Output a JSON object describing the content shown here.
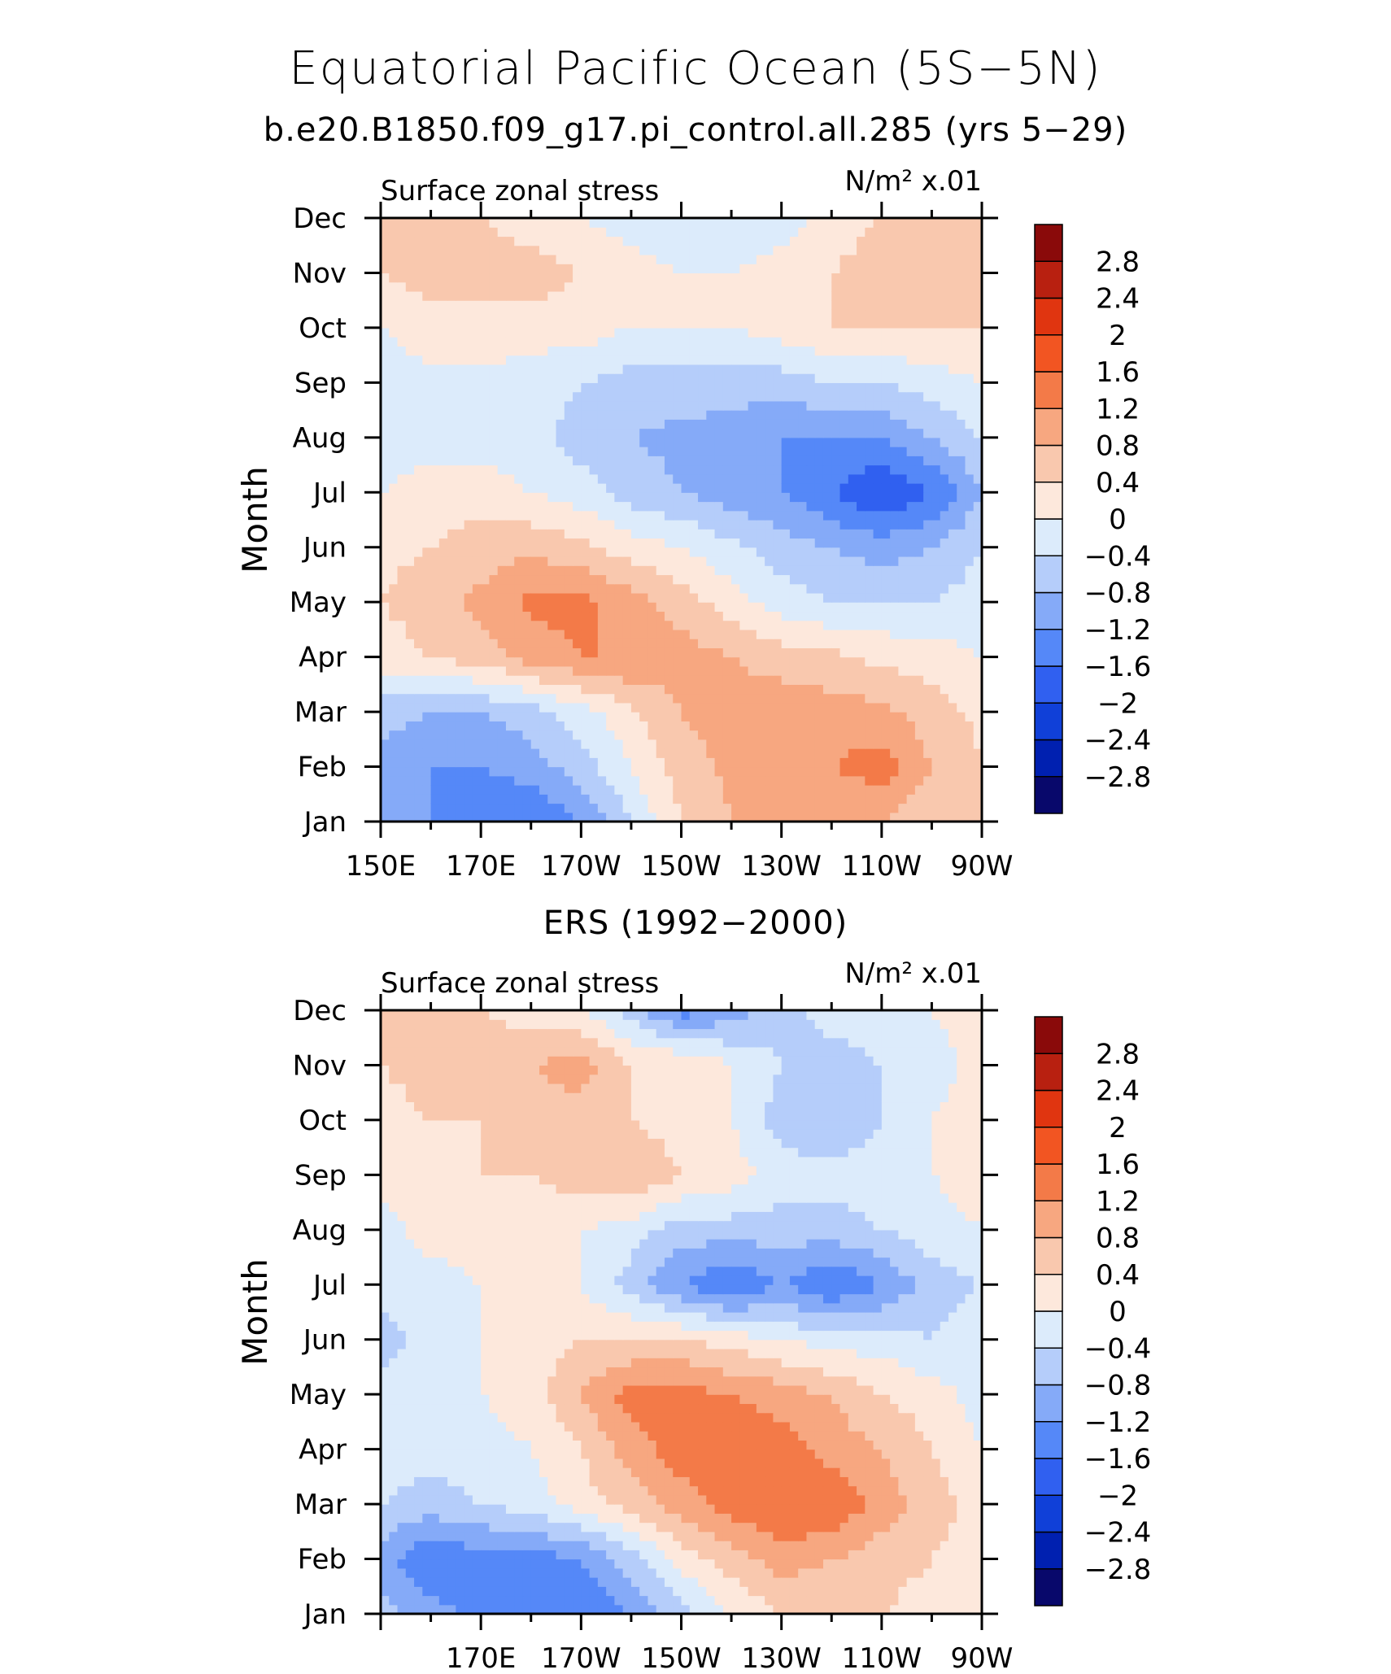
{
  "title": "Equatorial Pacific Ocean (5S−5N)",
  "subtitle": "b.e20.B1850.f09_g17.pi_control.all.285 (yrs 5−29)",
  "second_title": "ERS (1992−2000)",
  "colors": {
    "levels_fill": [
      "#08086b",
      "#0020b0",
      "#1040d8",
      "#3060f0",
      "#5588f8",
      "#85aaf8",
      "#b5cdfa",
      "#dcebfb",
      "#fde8dc",
      "#f9c8ae",
      "#f7a780",
      "#f37a48",
      "#f25522",
      "#e03510",
      "#b82010",
      "#8a0a0a"
    ]
  },
  "chart_data": [
    {
      "type": "heatmap",
      "panel_left_label": "Surface zonal stress",
      "panel_right_label": "N/m² x.01",
      "ylabel": "Month",
      "y_ticks": [
        "Jan",
        "Feb",
        "Mar",
        "Apr",
        "May",
        "Jun",
        "Jul",
        "Aug",
        "Sep",
        "Oct",
        "Nov",
        "Dec"
      ],
      "x_ticks": [
        "150E",
        "170E",
        "170W",
        "150W",
        "130W",
        "110W",
        "90W"
      ],
      "x_range_deg_east": [
        150,
        270
      ],
      "contour_levels": [
        -2.8,
        -2.4,
        -2,
        -1.6,
        -1.2,
        -0.8,
        -0.4,
        0,
        0.4,
        0.8,
        1.2,
        1.6,
        2,
        2.4,
        2.8
      ],
      "colorbar_labels": [
        "2.8",
        "2.4",
        "2",
        "1.6",
        "1.2",
        "0.8",
        "0.4",
        "0",
        "−0.4",
        "−0.8",
        "−1.2",
        "−1.6",
        "−2",
        "−2.4",
        "−2.8"
      ],
      "lon": [
        150,
        160,
        170,
        180,
        190,
        200,
        210,
        220,
        230,
        240,
        250,
        260,
        270
      ],
      "months": [
        "Jan",
        "Feb",
        "Mar",
        "Apr",
        "May",
        "Jun",
        "Jul",
        "Aug",
        "Sep",
        "Oct",
        "Nov",
        "Dec"
      ],
      "values": [
        [
          -0.8,
          -1.2,
          -1.6,
          -1.6,
          -1.2,
          -0.4,
          0.4,
          0.8,
          0.8,
          0.8,
          0.8,
          0.4,
          0.4
        ],
        [
          -1.0,
          -1.2,
          -1.2,
          -1.0,
          -0.6,
          0.0,
          0.6,
          0.9,
          1.0,
          1.2,
          1.4,
          0.8,
          0.4
        ],
        [
          -0.6,
          -0.8,
          -0.8,
          -0.6,
          -0.2,
          0.3,
          0.8,
          1.0,
          1.1,
          1.0,
          0.9,
          0.6,
          0.3
        ],
        [
          0.2,
          0.4,
          0.6,
          1.0,
          1.2,
          1.2,
          1.0,
          0.8,
          0.6,
          0.5,
          0.3,
          0.2,
          0.0
        ],
        [
          0.4,
          0.6,
          0.9,
          1.3,
          1.3,
          1.0,
          0.6,
          0.2,
          -0.2,
          -0.4,
          -0.4,
          -0.4,
          -0.2
        ],
        [
          0.3,
          0.4,
          0.6,
          0.7,
          0.5,
          0.2,
          0.0,
          -0.3,
          -0.6,
          -0.8,
          -1.0,
          -0.8,
          -0.4
        ],
        [
          0.0,
          0.2,
          0.2,
          0.0,
          -0.2,
          -0.6,
          -0.8,
          -1.0,
          -1.2,
          -1.6,
          -2.0,
          -1.6,
          -0.8
        ],
        [
          -0.2,
          -0.2,
          -0.2,
          -0.2,
          -0.6,
          -0.8,
          -0.9,
          -1.0,
          -1.2,
          -1.2,
          -1.2,
          -0.8,
          -0.4
        ],
        [
          -0.2,
          -0.1,
          -0.1,
          -0.2,
          -0.4,
          -0.6,
          -0.6,
          -0.6,
          -0.6,
          -0.4,
          -0.4,
          -0.2,
          0.0
        ],
        [
          0.0,
          0.2,
          0.2,
          0.2,
          0.2,
          0.0,
          0.0,
          0.0,
          0.2,
          0.4,
          0.4,
          0.4,
          0.4
        ],
        [
          0.4,
          0.6,
          0.6,
          0.6,
          0.4,
          0.2,
          0.0,
          0.0,
          0.2,
          0.4,
          0.6,
          0.6,
          0.6
        ],
        [
          0.4,
          0.4,
          0.4,
          0.2,
          0.0,
          -0.2,
          -0.4,
          -0.4,
          -0.2,
          0.2,
          0.4,
          0.4,
          0.4
        ]
      ]
    },
    {
      "type": "heatmap",
      "panel_left_label": "Surface zonal stress",
      "panel_right_label": "N/m² x.01",
      "ylabel": "Month",
      "y_ticks": [
        "Jan",
        "Feb",
        "Mar",
        "Apr",
        "May",
        "Jun",
        "Jul",
        "Aug",
        "Sep",
        "Oct",
        "Nov",
        "Dec"
      ],
      "x_ticks": [
        "170E",
        "170W",
        "150W",
        "130W",
        "110W",
        "90W"
      ],
      "x_range_deg_east": [
        150,
        270
      ],
      "contour_levels": [
        -2.8,
        -2.4,
        -2,
        -1.6,
        -1.2,
        -0.8,
        -0.4,
        0,
        0.4,
        0.8,
        1.2,
        1.6,
        2,
        2.4,
        2.8
      ],
      "colorbar_labels": [
        "2.8",
        "2.4",
        "2",
        "1.6",
        "1.2",
        "0.8",
        "0.4",
        "0",
        "−0.4",
        "−0.8",
        "−1.2",
        "−1.6",
        "−2",
        "−2.4",
        "−2.8"
      ],
      "lon": [
        150,
        160,
        170,
        180,
        190,
        200,
        210,
        220,
        230,
        240,
        250,
        260,
        270
      ],
      "months": [
        "Jan",
        "Feb",
        "Mar",
        "Apr",
        "May",
        "Jun",
        "Jul",
        "Aug",
        "Sep",
        "Oct",
        "Nov",
        "Dec"
      ],
      "values": [
        [
          -0.6,
          -1.0,
          -1.4,
          -1.6,
          -1.6,
          -1.2,
          -0.6,
          0.0,
          0.4,
          0.4,
          0.4,
          0.2,
          0.2
        ],
        [
          -1.0,
          -1.6,
          -1.4,
          -1.4,
          -1.2,
          -0.6,
          0.2,
          0.6,
          1.0,
          0.8,
          0.6,
          0.4,
          0.2
        ],
        [
          -0.4,
          -0.6,
          -0.4,
          -0.2,
          0.2,
          0.6,
          1.0,
          1.4,
          1.6,
          1.6,
          1.0,
          0.6,
          0.2
        ],
        [
          -0.2,
          -0.2,
          -0.2,
          0.0,
          0.4,
          1.0,
          1.4,
          1.6,
          1.4,
          1.0,
          0.8,
          0.4,
          0.0
        ],
        [
          -0.2,
          -0.2,
          0.0,
          0.2,
          0.8,
          1.4,
          1.4,
          1.2,
          1.0,
          0.8,
          0.4,
          0.2,
          -0.2
        ],
        [
          -0.6,
          -0.2,
          0.0,
          0.2,
          0.4,
          0.4,
          0.4,
          0.2,
          0.0,
          -0.2,
          -0.2,
          -0.4,
          -0.2
        ],
        [
          -0.2,
          -0.2,
          0.0,
          0.2,
          0.0,
          -0.6,
          -1.2,
          -1.6,
          -1.2,
          -1.6,
          -1.2,
          -0.6,
          -0.4
        ],
        [
          -0.2,
          0.2,
          0.2,
          0.2,
          0.0,
          -0.2,
          -0.6,
          -0.6,
          -0.6,
          -0.6,
          -0.4,
          -0.2,
          0.0
        ],
        [
          0.2,
          0.2,
          0.4,
          0.4,
          0.6,
          0.8,
          0.4,
          0.2,
          -0.2,
          -0.2,
          -0.2,
          0.0,
          0.2
        ],
        [
          0.2,
          0.4,
          0.4,
          0.6,
          0.6,
          0.4,
          0.2,
          0.0,
          -0.6,
          -0.8,
          -0.4,
          0.0,
          0.2
        ],
        [
          0.4,
          0.6,
          0.6,
          0.8,
          1.0,
          0.4,
          0.4,
          0.0,
          -0.4,
          -0.6,
          -0.4,
          -0.2,
          0.2
        ],
        [
          0.4,
          0.6,
          0.4,
          0.2,
          0.0,
          -0.6,
          -1.4,
          -1.0,
          -0.6,
          -0.2,
          -0.2,
          0.0,
          0.2
        ]
      ]
    }
  ]
}
